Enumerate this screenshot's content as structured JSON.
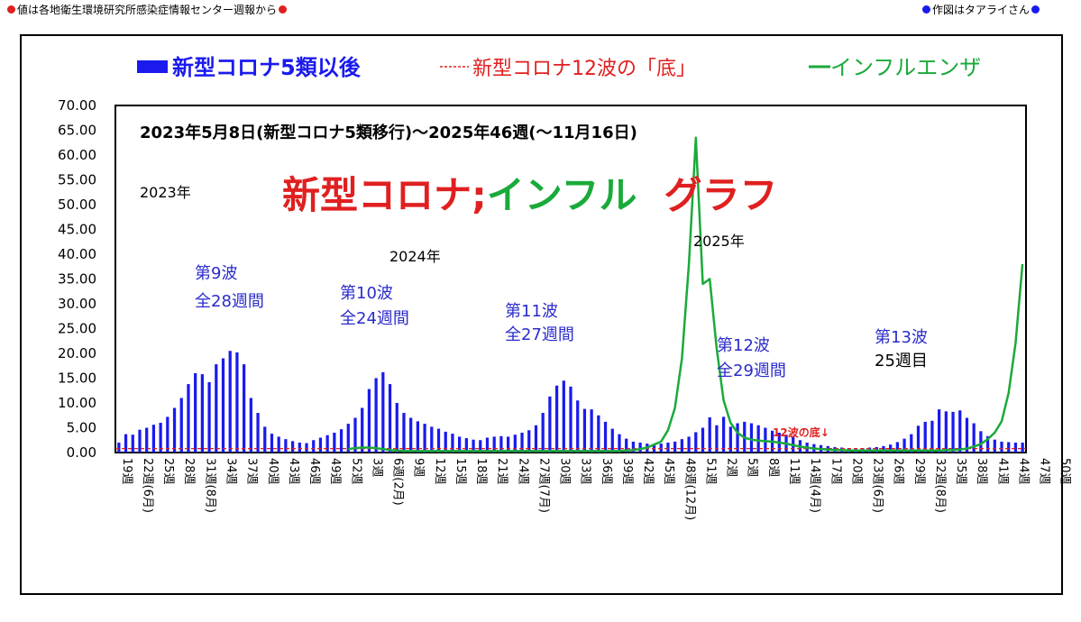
{
  "header": {
    "left_text": "値は各地衛生環境研究所感染症情報センター週報から",
    "right_text": "作図はタアライさん",
    "left_dot_color": "#e02020",
    "right_dot_color": "#1a1aee"
  },
  "chart_data": {
    "type": "bar",
    "title": "2023年5月8日(新型コロナ5類移行)～2025年46週(～11月16日)",
    "big_title": {
      "red_part": "新型コロナ;",
      "green_part": "インフル",
      "red_part2": "グラフ"
    },
    "ylim": [
      0,
      70
    ],
    "y_ticks": [
      "0.00",
      "5.00",
      "10.00",
      "15.00",
      "20.00",
      "25.00",
      "30.00",
      "35.00",
      "40.00",
      "45.00",
      "50.00",
      "55.00",
      "60.00",
      "65.00",
      "70.00"
    ],
    "grid": false,
    "legend_position": "top",
    "legend": [
      {
        "label": "新型コロナ5類以後",
        "color": "#1a1aee",
        "style": "bar"
      },
      {
        "label": "新型コロナ12波の「底」",
        "color": "#e02020",
        "style": "dashed"
      },
      {
        "label": "インフルエンザ",
        "color": "#1aaa3a",
        "style": "line"
      }
    ],
    "x_labels": [
      "19週",
      "22週(6月)",
      "25週",
      "28週",
      "31週(8月)",
      "34週",
      "37週",
      "40週",
      "43週",
      "46週",
      "49週",
      "52週",
      "3週",
      "6週(2月)",
      "9週",
      "12週",
      "15週",
      "18週",
      "21週",
      "24週",
      "27週(7月)",
      "30週",
      "33週",
      "36週",
      "39週",
      "42週",
      "45週",
      "48週(12月)",
      "51週",
      "2週",
      "5週",
      "8週",
      "11週",
      "14週(4月)",
      "17週",
      "20週",
      "23週(6月)",
      "26週",
      "29週",
      "32週(8月)",
      "35週",
      "38週",
      "41週",
      "44週",
      "47週",
      "50週"
    ],
    "year_labels": [
      "2023年",
      "2024年",
      "2025年"
    ],
    "wave_labels": [
      {
        "line1": "第9波",
        "line2": "全28週間",
        "color": "#2b2bcc"
      },
      {
        "line1": "第10波",
        "line2": "全24週間",
        "color": "#2b2bcc"
      },
      {
        "line1": "第11波",
        "line2": "全27週間",
        "color": "#2b2bcc"
      },
      {
        "line1": "第12波",
        "line2": "全29週間",
        "color": "#2b2bcc"
      },
      {
        "line1": "第13波",
        "line2": "25週目",
        "color": "#2b2bcc",
        "line2_color": "#000000"
      }
    ],
    "annotation_bottom": "12波の底↓",
    "bottom_level": 0.8,
    "covid_series": {
      "name": "新型コロナ5類以後",
      "values": [
        2.0,
        3.7,
        3.6,
        4.6,
        5.0,
        5.6,
        6.0,
        7.2,
        9.0,
        11.0,
        13.8,
        16.0,
        15.8,
        14.2,
        17.8,
        19.0,
        20.5,
        20.2,
        17.8,
        11.0,
        8.0,
        5.2,
        3.8,
        3.2,
        2.7,
        2.3,
        2.0,
        1.9,
        2.5,
        3.0,
        3.5,
        4.0,
        4.7,
        5.8,
        7.0,
        9.0,
        12.8,
        15.0,
        16.2,
        13.8,
        10.0,
        8.0,
        7.0,
        6.3,
        5.8,
        5.2,
        4.8,
        4.2,
        3.8,
        3.2,
        2.9,
        2.6,
        2.5,
        3.0,
        3.2,
        3.3,
        3.2,
        3.6,
        4.0,
        4.5,
        5.5,
        8.0,
        11.3,
        13.5,
        14.5,
        13.3,
        10.5,
        8.8,
        8.7,
        7.5,
        6.2,
        4.8,
        3.7,
        2.8,
        2.2,
        2.0,
        1.8,
        1.7,
        1.8,
        2.0,
        2.2,
        2.7,
        3.2,
        4.1,
        5.0,
        7.1,
        5.5,
        7.2,
        5.2,
        5.9,
        6.2,
        5.9,
        5.5,
        5.0,
        4.4,
        4.0,
        3.6,
        3.2,
        2.5,
        2.0,
        1.7,
        1.5,
        1.3,
        1.1,
        1.0,
        0.9,
        0.9,
        0.9,
        1.0,
        1.1,
        1.3,
        1.6,
        2.1,
        2.8,
        3.7,
        5.4,
        6.2,
        6.4,
        8.7,
        8.3,
        8.2,
        8.5,
        7.0,
        5.9,
        4.3,
        3.3,
        2.6,
        2.2,
        2.1,
        2.0,
        2.0
      ]
    },
    "flu_series": {
      "name": "インフルエンザ",
      "values": [
        0.7,
        0.9,
        1.0,
        1.0,
        0.9,
        0.7,
        0.5,
        0.4,
        0.3,
        0.3,
        0.3,
        0.3,
        0.3,
        0.3,
        0.3,
        0.3,
        0.3,
        0.3,
        0.3,
        0.3,
        0.3,
        0.3,
        0.3,
        0.3,
        0.3,
        0.3,
        0.3,
        0.3,
        0.3,
        0.3,
        0.3,
        0.3,
        0.3,
        0.3,
        0.3,
        0.3,
        0.3,
        0.3,
        0.3,
        0.3,
        0.4,
        0.5,
        0.7,
        1.0,
        1.6,
        2.2,
        4.5,
        9.0,
        19.0,
        38.0,
        63.5,
        34.0,
        35.0,
        21.0,
        10.5,
        6.0,
        4.0,
        3.0,
        2.6,
        2.4,
        2.3,
        2.2,
        2.0,
        1.8,
        1.5,
        1.2,
        1.0,
        0.8,
        0.7,
        0.6,
        0.5,
        0.5,
        0.4,
        0.4,
        0.4,
        0.4,
        0.4,
        0.4,
        0.4,
        0.4,
        0.4,
        0.4,
        0.4,
        0.4,
        0.4,
        0.4,
        0.5,
        0.5,
        0.6,
        0.8,
        1.2,
        1.7,
        2.7,
        4.0,
        6.3,
        12.0,
        22.0,
        38.0
      ]
    }
  }
}
